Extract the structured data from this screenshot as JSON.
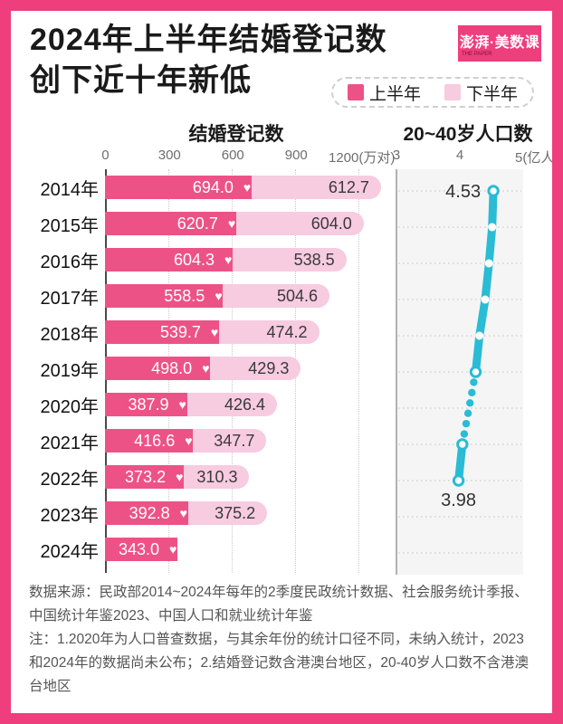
{
  "colors": {
    "frame": "#EF3E7C",
    "bar_dark": "#ED5286",
    "bar_light": "#F7CBE0",
    "line_teal": "#29BCD4",
    "plot_bg": "#F5F5F6",
    "grid": "#CCCCCC",
    "axis_dark": "#4A4A4A",
    "axis_gray": "#9A9A9A"
  },
  "icons": {
    "heart": "♥"
  },
  "header": {
    "title_line1": "2024年上半年结婚登记数",
    "title_line2": "创下近十年新低",
    "logo": {
      "text": "澎湃·美数课",
      "subtext": "THE PAPER"
    }
  },
  "legend": {
    "items": [
      {
        "label": "上半年",
        "color": "#ED5286"
      },
      {
        "label": "下半年",
        "color": "#F7CBE0"
      }
    ]
  },
  "chart_data": [
    {
      "type": "bar",
      "orientation": "horizontal",
      "stacked": true,
      "title": "结婚登记数",
      "unit": "万对",
      "xlim": [
        0,
        1200
      ],
      "x_tick_values": [
        0,
        300,
        600,
        900,
        1200
      ],
      "x_ticks": [
        "0",
        "300",
        "600",
        "900",
        "1200(万对)"
      ],
      "categories": [
        "2014年",
        "2015年",
        "2016年",
        "2017年",
        "2018年",
        "2019年",
        "2020年",
        "2021年",
        "2022年",
        "2023年",
        "2024年"
      ],
      "series": [
        {
          "name": "上半年",
          "values": [
            694.0,
            620.7,
            604.3,
            558.5,
            539.7,
            498.0,
            387.9,
            416.6,
            373.2,
            392.8,
            343.0
          ]
        },
        {
          "name": "下半年",
          "values": [
            612.7,
            604.0,
            538.5,
            504.6,
            474.2,
            429.3,
            426.4,
            347.7,
            310.3,
            375.2,
            null
          ]
        }
      ]
    },
    {
      "type": "line",
      "title": "20~40岁人口数",
      "unit": "亿人",
      "xlim": [
        3,
        5
      ],
      "x_tick_values": [
        3,
        4,
        5
      ],
      "x_ticks": [
        "3",
        "4",
        "5(亿人)"
      ],
      "categories": [
        "2014年",
        "2015年",
        "2016年",
        "2017年",
        "2018年",
        "2019年",
        "2020年",
        "2021年",
        "2022年",
        "2023年",
        "2024年"
      ],
      "values": [
        4.53,
        4.51,
        4.46,
        4.4,
        4.31,
        4.25,
        null,
        4.04,
        3.98,
        null,
        null
      ],
      "labeled_points": [
        {
          "category": "2014年",
          "value": 4.53,
          "label": "4.53",
          "label_position": "left"
        },
        {
          "category": "2022年",
          "value": 3.98,
          "label": "3.98",
          "label_position": "below"
        }
      ],
      "gap_note": "2020 shown as dotted gap"
    }
  ],
  "footer": {
    "source": "数据来源：民政部2014~2024年每年的2季度民政统计数据、社会服务统计季报、中国统计年鉴2023、中国人口和就业统计年鉴",
    "note": "注：1.2020年为人口普查数据，与其余年份的统计口径不同，未纳入统计，2023和2024年的数据尚未公布；2.结婚登记数含港澳台地区，20-40岁人口数不含港澳台地区"
  }
}
